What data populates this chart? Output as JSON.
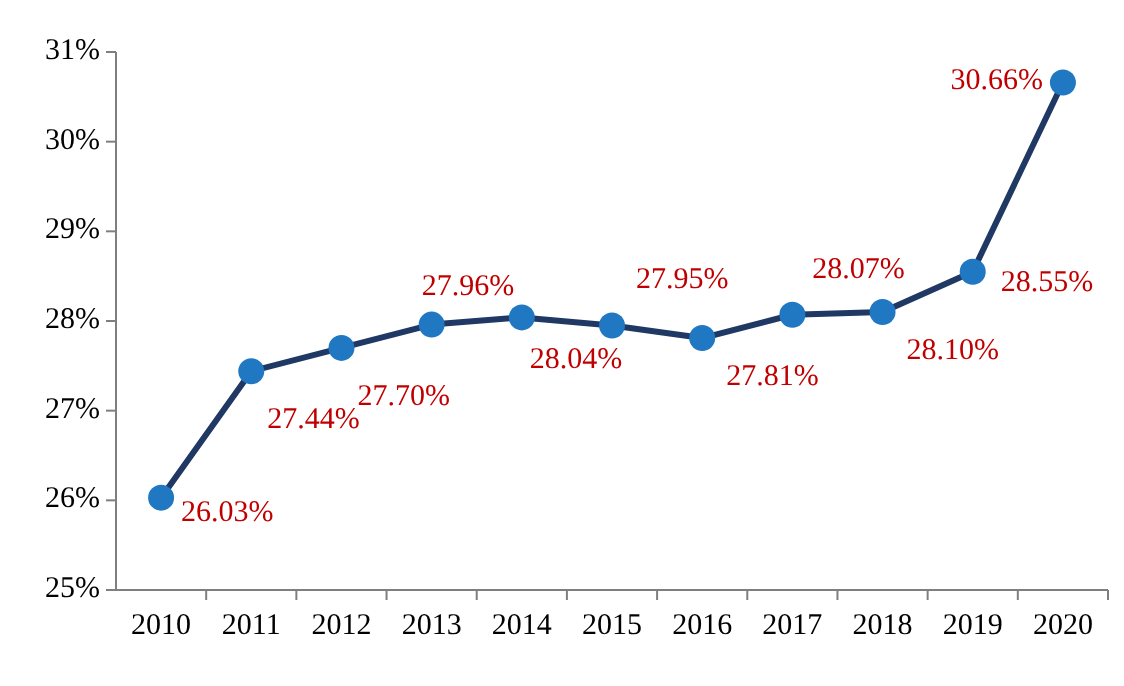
{
  "chart_data": {
    "type": "line",
    "categories": [
      "2010",
      "2011",
      "2012",
      "2013",
      "2014",
      "2015",
      "2016",
      "2017",
      "2018",
      "2019",
      "2020"
    ],
    "series": [
      {
        "color": "#1f3864",
        "values": [
          26.03,
          27.44,
          27.7,
          27.96,
          28.04,
          27.95,
          27.81,
          28.07,
          28.1,
          28.55,
          30.66
        ]
      }
    ],
    "ylim": [
      25,
      31
    ],
    "yticks": [
      {
        "value": 25,
        "label": "25%"
      },
      {
        "value": 26,
        "label": "26%"
      },
      {
        "value": 27,
        "label": "27%"
      },
      {
        "value": 28,
        "label": "28%"
      },
      {
        "value": 29,
        "label": "29%"
      },
      {
        "value": 30,
        "label": "30%"
      },
      {
        "value": 31,
        "label": "31%"
      }
    ],
    "value_labels": [
      [
        "26.03%",
        "27.44%",
        "27.70%",
        "27.96%",
        "28.04%",
        "27.95%",
        "27.81%",
        "28.07%",
        "28.10%",
        "28.55%",
        "30.66%"
      ]
    ],
    "marker": "circle",
    "grid": false
  }
}
